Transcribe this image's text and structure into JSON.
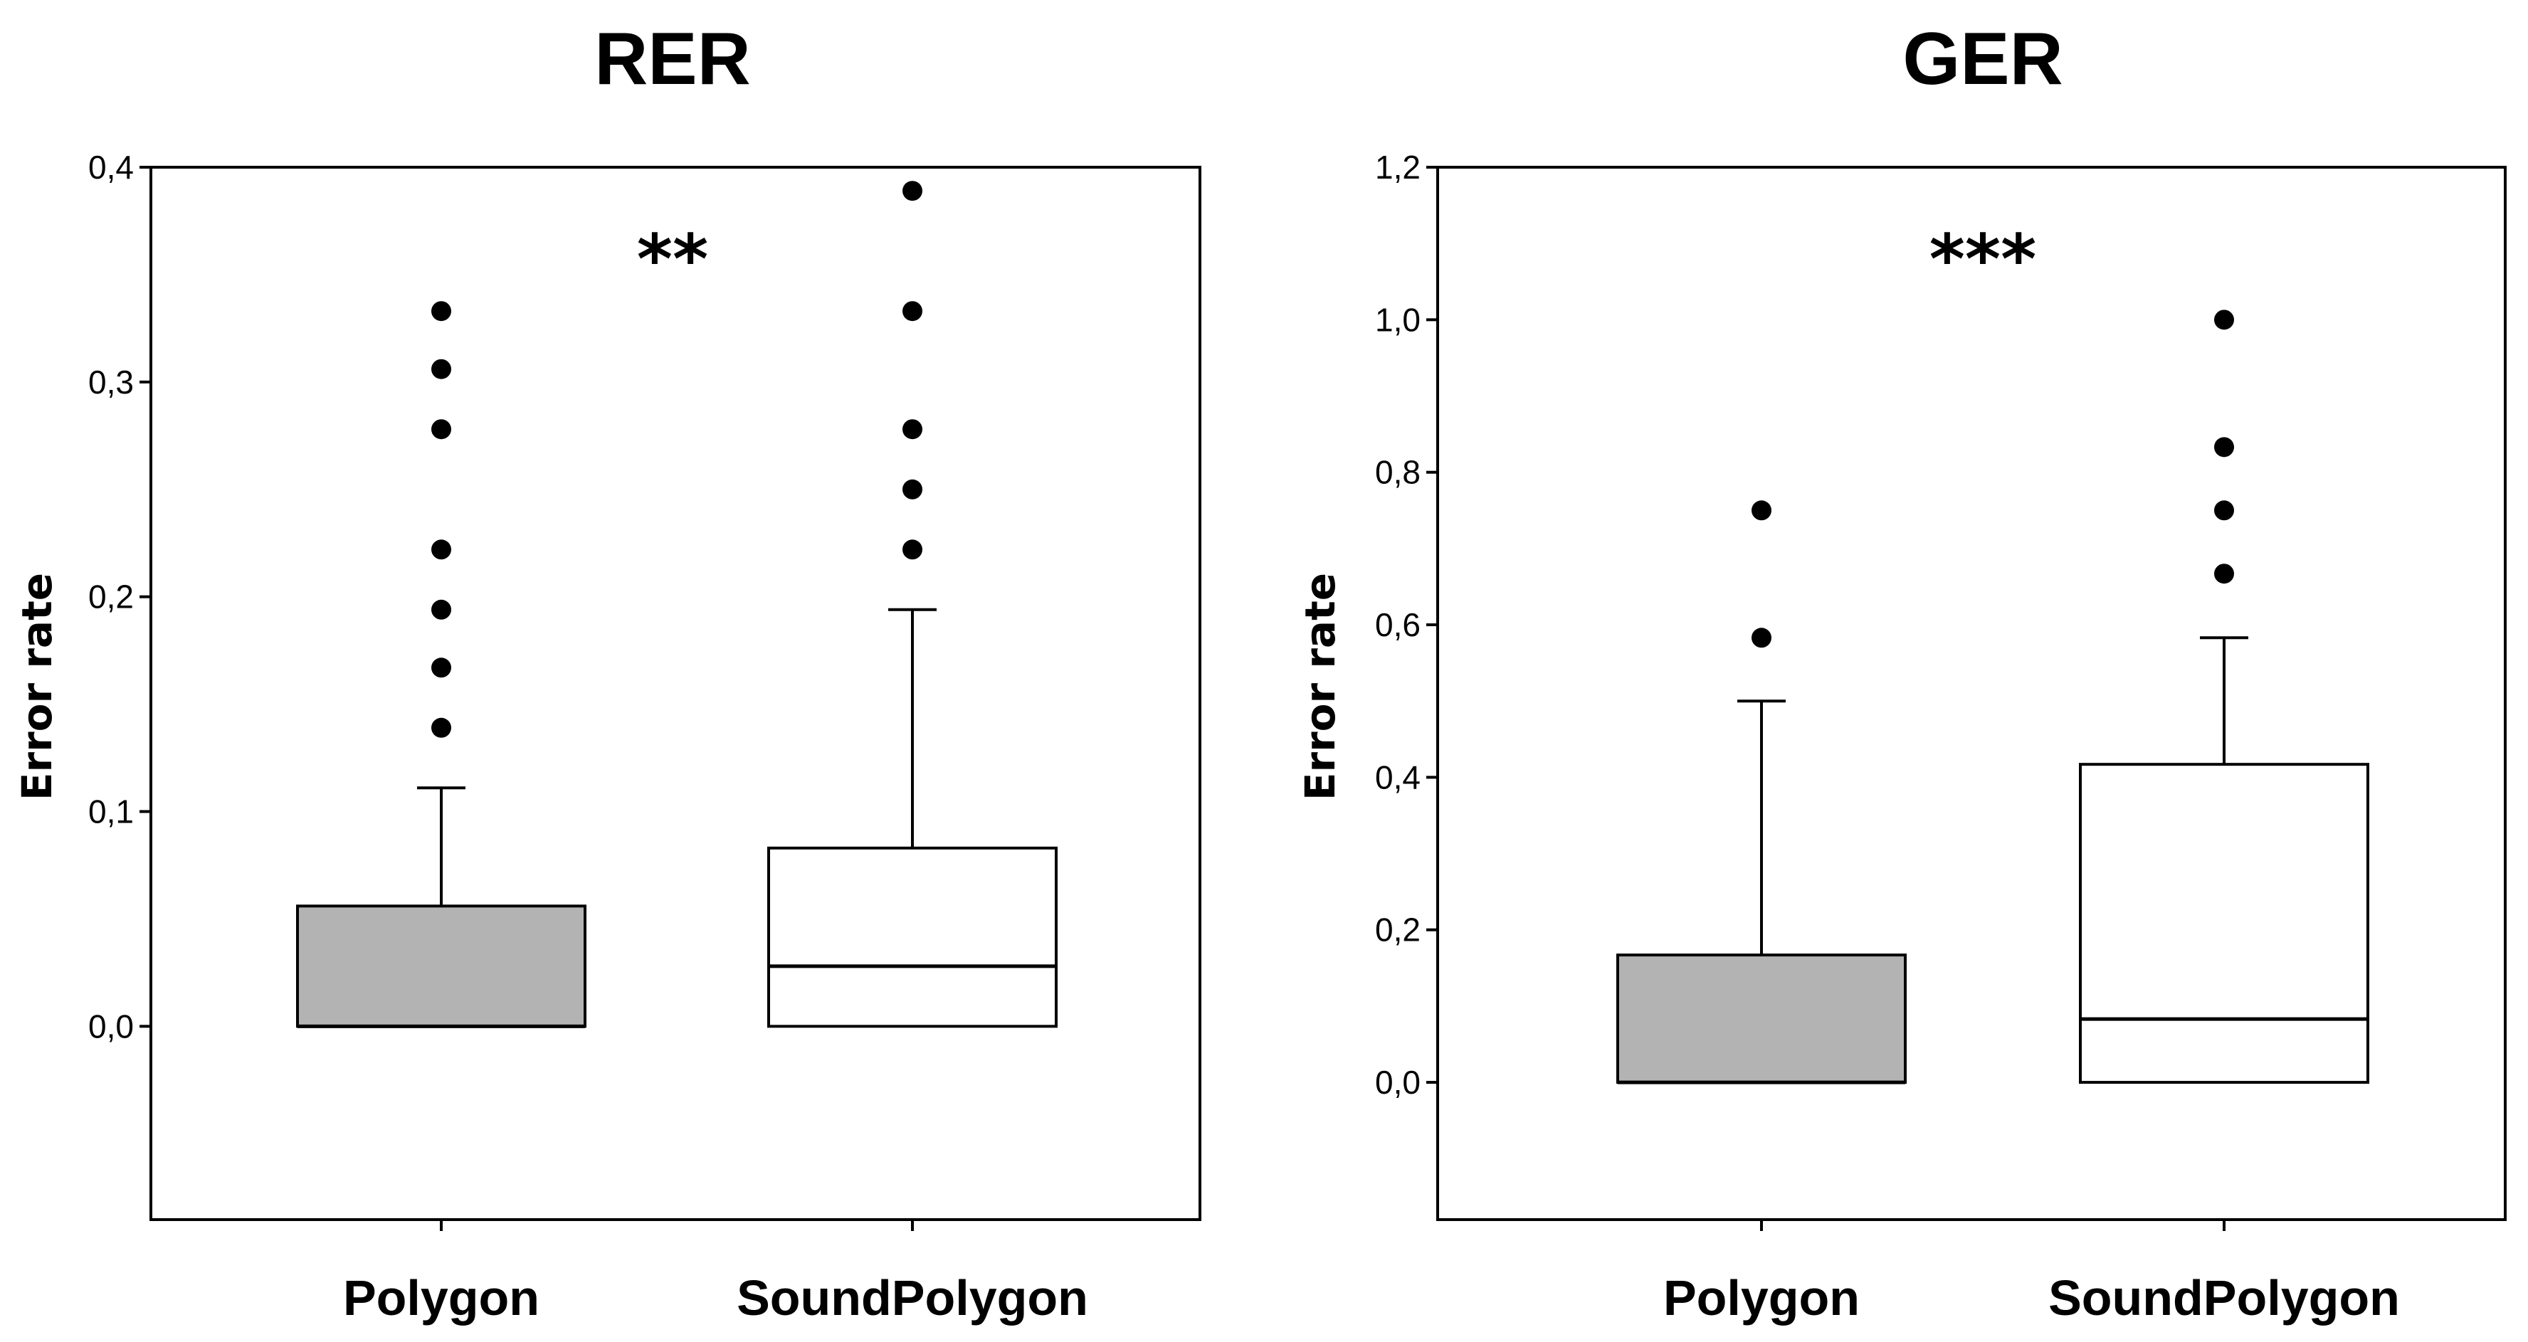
{
  "chart_data": [
    {
      "type": "box",
      "title": "RER",
      "ylabel": "Error rate",
      "xlabel": "",
      "ylim": [
        -0.09,
        0.4
      ],
      "yticks": [
        0.0,
        0.1,
        0.2,
        0.3,
        0.4
      ],
      "ytick_labels": [
        "0,0",
        "0,1",
        "0,2",
        "0,3",
        "0,4"
      ],
      "significance": "**",
      "grid": false,
      "categories": [
        "Polygon",
        "SoundPolygon"
      ],
      "series": [
        {
          "name": "Polygon",
          "fill": "#b3b3b3",
          "whisker_low": 0.0,
          "q1": 0.0,
          "median": 0.0,
          "q3": 0.056,
          "whisker_high": 0.111,
          "outliers": [
            0.139,
            0.167,
            0.194,
            0.222,
            0.278,
            0.306,
            0.333
          ]
        },
        {
          "name": "SoundPolygon",
          "fill": "#ffffff",
          "whisker_low": 0.0,
          "q1": 0.0,
          "median": 0.028,
          "q3": 0.083,
          "whisker_high": 0.194,
          "outliers": [
            0.222,
            0.25,
            0.278,
            0.333,
            0.389
          ]
        }
      ]
    },
    {
      "type": "box",
      "title": "GER",
      "ylabel": "Error rate",
      "xlabel": "",
      "ylim": [
        -0.18,
        1.2
      ],
      "yticks": [
        0.0,
        0.2,
        0.4,
        0.6,
        0.8,
        1.0,
        1.2
      ],
      "ytick_labels": [
        "0,0",
        "0,2",
        "0,4",
        "0,6",
        "0,8",
        "1,0",
        "1,2"
      ],
      "significance": "***",
      "grid": false,
      "categories": [
        "Polygon",
        "SoundPolygon"
      ],
      "series": [
        {
          "name": "Polygon",
          "fill": "#b3b3b3",
          "whisker_low": 0.0,
          "q1": 0.0,
          "median": 0.0,
          "q3": 0.167,
          "whisker_high": 0.5,
          "outliers": [
            0.583,
            0.75
          ]
        },
        {
          "name": "SoundPolygon",
          "fill": "#ffffff",
          "whisker_low": 0.0,
          "q1": 0.0,
          "median": 0.083,
          "q3": 0.417,
          "whisker_high": 0.583,
          "outliers": [
            0.667,
            0.75,
            0.833,
            1.0
          ]
        }
      ]
    }
  ]
}
